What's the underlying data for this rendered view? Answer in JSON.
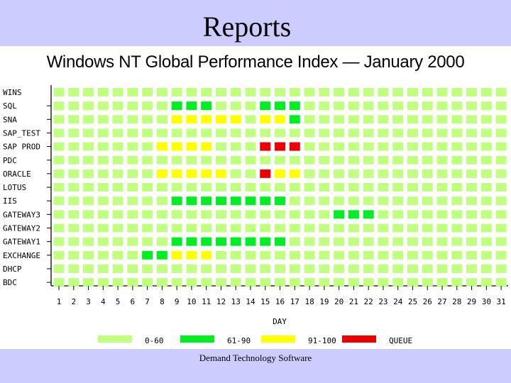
{
  "header": {
    "title": "Reports"
  },
  "footer": {
    "text": "Demand Technology Software"
  },
  "chart_data": {
    "type": "heatmap",
    "title": "Windows NT Global Performance Index — January 2000",
    "xlabel": "DAY",
    "ylabel": "",
    "x": [
      1,
      2,
      3,
      4,
      5,
      6,
      7,
      8,
      9,
      10,
      11,
      12,
      13,
      14,
      15,
      16,
      17,
      18,
      19,
      20,
      21,
      22,
      23,
      24,
      25,
      26,
      27,
      28,
      29,
      30,
      31
    ],
    "rows": [
      "WINS",
      "SQL",
      "SNA",
      "SAP_TEST",
      "SAP PROD",
      "PDC",
      "ORACLE",
      "LOTUS",
      "IIS",
      "GATEWAY3",
      "GATEWAY2",
      "GATEWAY1",
      "EXCHANGE",
      "DHCP",
      "BDC"
    ],
    "legend": [
      {
        "label": "0-60",
        "color": "#c0ff80"
      },
      {
        "label": "61-90",
        "color": "#00ee22"
      },
      {
        "label": "91-100",
        "color": "#ffff00"
      },
      {
        "label": "QUEUE",
        "color": "#ee0000"
      }
    ],
    "legend_placement": "bottom",
    "default_category": 0,
    "cells": {
      "SQL": {
        "9": 1,
        "10": 1,
        "11": 1,
        "15": 1,
        "16": 1,
        "17": 1
      },
      "SNA": {
        "9": 2,
        "10": 2,
        "11": 2,
        "12": 2,
        "13": 2,
        "15": 2,
        "16": 2,
        "17": 1
      },
      "SAP PROD": {
        "8": 2,
        "9": 2,
        "10": 2,
        "11": 2,
        "15": 3,
        "16": 3,
        "17": 3
      },
      "ORACLE": {
        "8": 2,
        "9": 2,
        "10": 2,
        "11": 2,
        "12": 2,
        "15": 3,
        "16": 2,
        "17": 2
      },
      "IIS": {
        "9": 1,
        "10": 1,
        "11": 1,
        "12": 1,
        "13": 1,
        "14": 1,
        "15": 1,
        "16": 1
      },
      "GATEWAY3": {
        "20": 1,
        "21": 1,
        "22": 1
      },
      "GATEWAY1": {
        "9": 1,
        "10": 1,
        "11": 1,
        "12": 1,
        "13": 1,
        "14": 1,
        "15": 1,
        "16": 1
      },
      "EXCHANGE": {
        "7": 1,
        "8": 1,
        "9": 2,
        "10": 2,
        "11": 2
      }
    }
  }
}
